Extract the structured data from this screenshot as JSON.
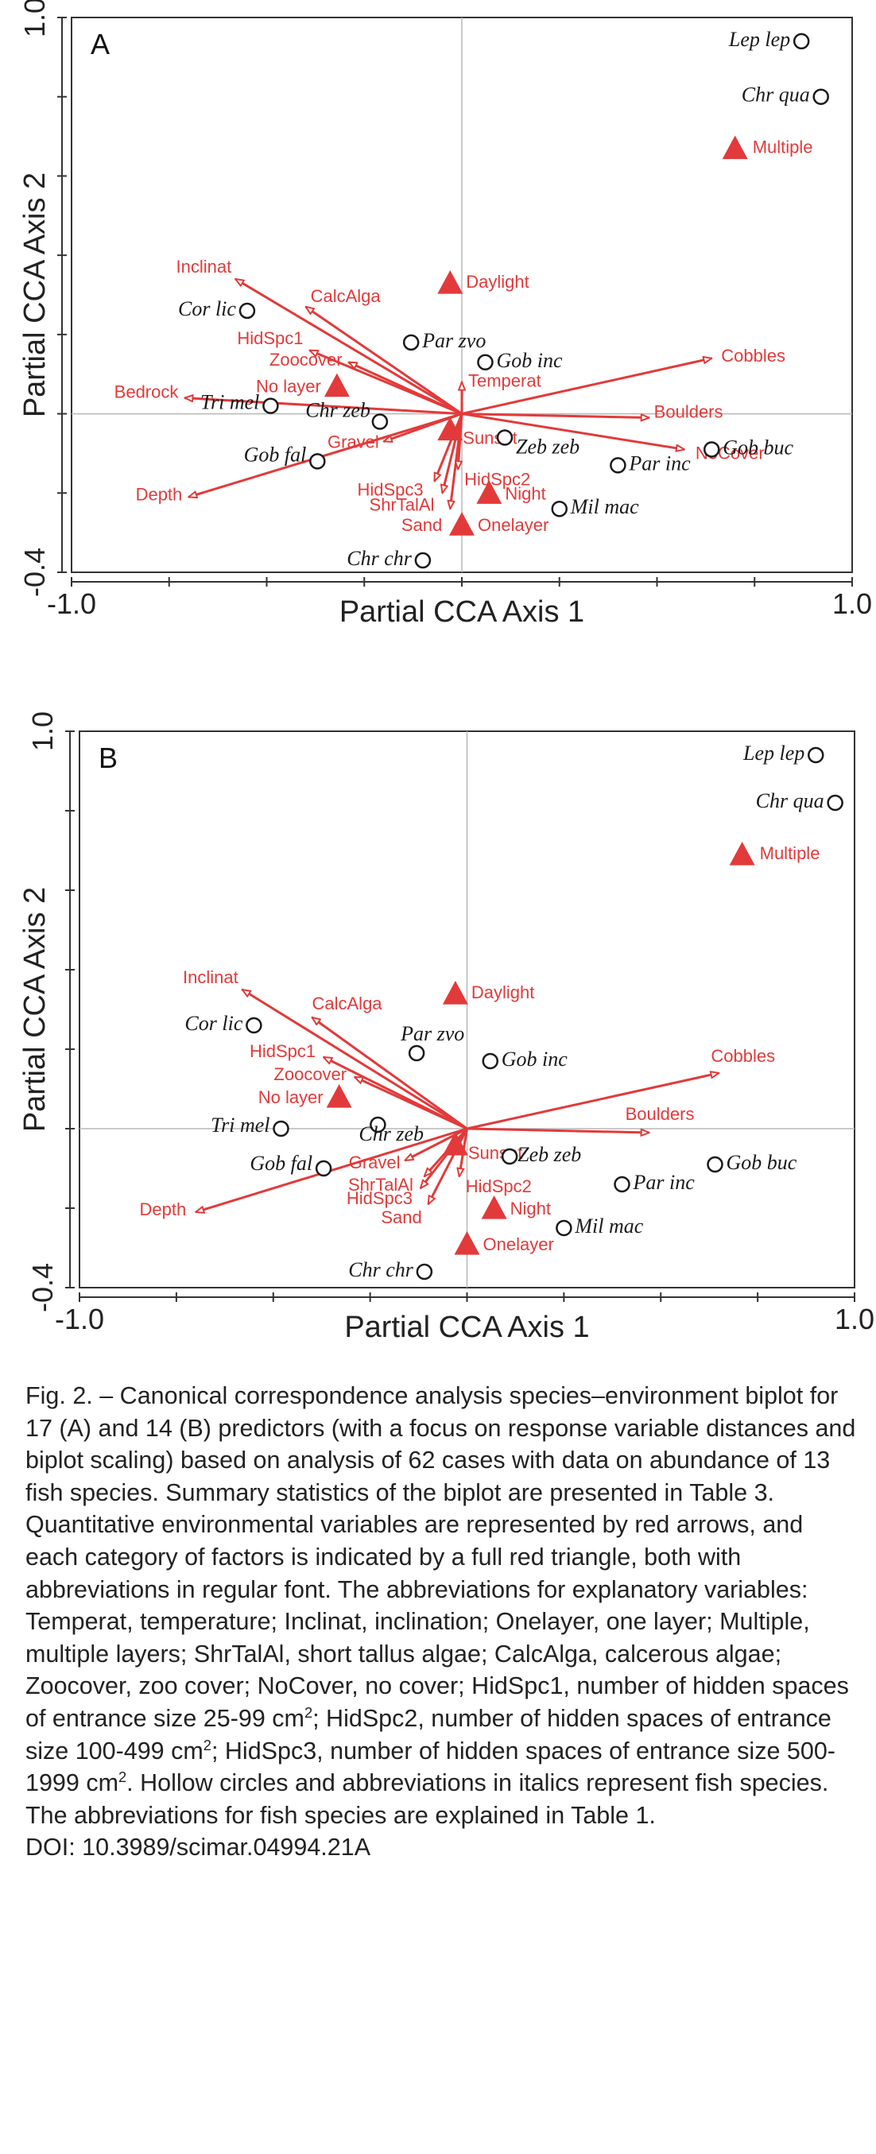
{
  "figure": {
    "caption_parts": [
      "Fig. 2. – Canonical correspondence analysis species–environment biplot for 17 (A) and 14 (B) predictors (with a focus on response variable distances and biplot scaling) based on analysis of 62 cases with data on abundance of 13 fish species. Summary statistics of the biplot are presented in Table 3. Quantitative environmental variables are represented by red arrows, and each category of factors is indicated by a full red triangle, both with abbreviations in regular font. The abbreviations for explanatory variables: Temperat, temperature; Inclinat, inclination; Onelayer, one layer; Multiple, multiple layers; ShrTalAl, short tallus algae; CalcAlga, calcerous algae; Zoocover, zoo cover; NoCover, no cover; HidSpc1, number of hidden spaces of entrance size 25-99 cm",
      "2",
      "; HidSpc2, number of hidden spaces of entrance size 100-499 cm",
      "2",
      "; HidSpc3, number of hidden spaces of entrance size 500-1999 cm",
      "2",
      ". Hollow circles and abbreviations in italics represent fish species. The abbreviations for fish species are explained in Table 1.",
      "DOI: 10.3989/scimar.04994.21A"
    ]
  },
  "colors": {
    "env": "#e23a3a",
    "species": "#1a1a1a",
    "axis": "#333333",
    "crosshair": "#b8b8b8"
  },
  "chart_data": [
    {
      "type": "scatter",
      "panel": "A",
      "xlabel": "Partial CCA Axis 1",
      "ylabel": "Partial CCA Axis 2",
      "xlim": [
        -1.0,
        1.0
      ],
      "ylim": [
        -0.4,
        1.0
      ],
      "x_tick_labels": [
        "-1.0",
        "1.0"
      ],
      "y_tick_labels": [
        "-0.4",
        "1.0"
      ],
      "arrows": [
        {
          "name": "Inclinat",
          "x": -0.58,
          "y": 0.34
        },
        {
          "name": "CalcAlga",
          "x": -0.4,
          "y": 0.27
        },
        {
          "name": "HidSpc1",
          "x": -0.39,
          "y": 0.16
        },
        {
          "name": "Zoocover",
          "x": -0.29,
          "y": 0.13
        },
        {
          "name": "Bedrock",
          "x": -0.71,
          "y": 0.04
        },
        {
          "name": "Gravel",
          "x": -0.2,
          "y": -0.07
        },
        {
          "name": "Depth",
          "x": -0.7,
          "y": -0.21
        },
        {
          "name": "HidSpc3",
          "x": -0.07,
          "y": -0.17
        },
        {
          "name": "ShrTalAl",
          "x": -0.05,
          "y": -0.2
        },
        {
          "name": "Sand",
          "x": -0.03,
          "y": -0.24
        },
        {
          "name": "HidSpc2",
          "x": -0.01,
          "y": -0.14
        },
        {
          "name": "Temperat",
          "x": 0.0,
          "y": 0.08
        },
        {
          "name": "Cobbles",
          "x": 0.64,
          "y": 0.14
        },
        {
          "name": "Boulders",
          "x": 0.48,
          "y": -0.01
        },
        {
          "name": "NoCover",
          "x": 0.57,
          "y": -0.09
        }
      ],
      "factors": [
        {
          "name": "Multiple",
          "x": 0.7,
          "y": 0.67
        },
        {
          "name": "Daylight",
          "x": -0.03,
          "y": 0.33
        },
        {
          "name": "No layer",
          "x": -0.32,
          "y": 0.07
        },
        {
          "name": "Sunset",
          "x": -0.03,
          "y": -0.04
        },
        {
          "name": "Night",
          "x": 0.07,
          "y": -0.2
        },
        {
          "name": "Onelayer",
          "x": 0.0,
          "y": -0.28
        }
      ],
      "species": [
        {
          "name": "Lep lep",
          "x": 0.87,
          "y": 0.94
        },
        {
          "name": "Chr qua",
          "x": 0.92,
          "y": 0.8
        },
        {
          "name": "Cor lic",
          "x": -0.55,
          "y": 0.26
        },
        {
          "name": "Par zvo",
          "x": -0.13,
          "y": 0.18
        },
        {
          "name": "Gob inc",
          "x": 0.06,
          "y": 0.13
        },
        {
          "name": "Tri mel",
          "x": -0.49,
          "y": 0.02
        },
        {
          "name": "Chr zeb",
          "x": -0.21,
          "y": -0.02
        },
        {
          "name": "Gob fal",
          "x": -0.37,
          "y": -0.12
        },
        {
          "name": "Zeb zeb",
          "x": 0.11,
          "y": -0.06
        },
        {
          "name": "Par inc",
          "x": 0.4,
          "y": -0.13
        },
        {
          "name": "Gob buc",
          "x": 0.64,
          "y": -0.09
        },
        {
          "name": "Mil mac",
          "x": 0.25,
          "y": -0.24
        },
        {
          "name": "Chr chr",
          "x": -0.1,
          "y": -0.37
        }
      ]
    },
    {
      "type": "scatter",
      "panel": "B",
      "xlabel": "Partial CCA Axis 1",
      "ylabel": "Partial CCA Axis 2",
      "xlim": [
        -1.0,
        1.0
      ],
      "ylim": [
        -0.4,
        1.0
      ],
      "x_tick_labels": [
        "-1.0",
        "1.0"
      ],
      "y_tick_labels": [
        "-0.4",
        "1.0"
      ],
      "arrows": [
        {
          "name": "Inclinat",
          "x": -0.58,
          "y": 0.35
        },
        {
          "name": "CalcAlga",
          "x": -0.4,
          "y": 0.28
        },
        {
          "name": "HidSpc1",
          "x": -0.37,
          "y": 0.18
        },
        {
          "name": "Zoocover",
          "x": -0.29,
          "y": 0.13
        },
        {
          "name": "Gravel",
          "x": -0.16,
          "y": -0.08
        },
        {
          "name": "Depth",
          "x": -0.7,
          "y": -0.21
        },
        {
          "name": "ShrTalAl",
          "x": -0.11,
          "y": -0.12
        },
        {
          "name": "HidSpc3",
          "x": -0.12,
          "y": -0.15
        },
        {
          "name": "Sand",
          "x": -0.1,
          "y": -0.19
        },
        {
          "name": "HidSpc2",
          "x": -0.02,
          "y": -0.12
        },
        {
          "name": "Cobbles",
          "x": 0.65,
          "y": 0.14
        },
        {
          "name": "Boulders",
          "x": 0.47,
          "y": -0.01
        }
      ],
      "factors": [
        {
          "name": "Multiple",
          "x": 0.71,
          "y": 0.69
        },
        {
          "name": "Daylight",
          "x": -0.03,
          "y": 0.34
        },
        {
          "name": "No layer",
          "x": -0.33,
          "y": 0.08
        },
        {
          "name": "Sunset",
          "x": -0.03,
          "y": -0.04
        },
        {
          "name": "Night",
          "x": 0.07,
          "y": -0.2
        },
        {
          "name": "Onelayer",
          "x": 0.0,
          "y": -0.29
        }
      ],
      "species": [
        {
          "name": "Lep lep",
          "x": 0.9,
          "y": 0.94
        },
        {
          "name": "Chr qua",
          "x": 0.95,
          "y": 0.82
        },
        {
          "name": "Cor lic",
          "x": -0.55,
          "y": 0.26
        },
        {
          "name": "Par zvo",
          "x": -0.13,
          "y": 0.19
        },
        {
          "name": "Gob inc",
          "x": 0.06,
          "y": 0.17
        },
        {
          "name": "Tri mel",
          "x": -0.48,
          "y": 0.0
        },
        {
          "name": "Chr zeb",
          "x": -0.23,
          "y": 0.01
        },
        {
          "name": "Gob fal",
          "x": -0.37,
          "y": -0.1
        },
        {
          "name": "Zeb zeb",
          "x": 0.11,
          "y": -0.07
        },
        {
          "name": "Par inc",
          "x": 0.4,
          "y": -0.14
        },
        {
          "name": "Gob buc",
          "x": 0.64,
          "y": -0.09
        },
        {
          "name": "Mil mac",
          "x": 0.25,
          "y": -0.25
        },
        {
          "name": "Chr chr",
          "x": -0.11,
          "y": -0.36
        }
      ]
    }
  ]
}
